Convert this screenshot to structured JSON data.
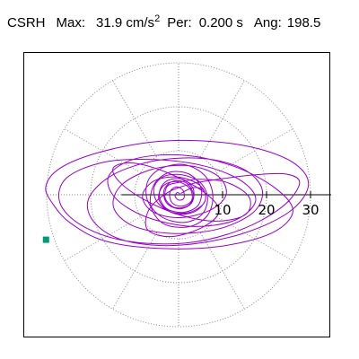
{
  "header": {
    "station": "CSRH",
    "max_label": "Max:",
    "max_value": "31.9 cm/s",
    "max_exp": "2",
    "per_label": "Per:",
    "per_value": "0.200 s",
    "ang_label": "Ang:",
    "ang_value": "198.5"
  },
  "chart_data": {
    "type": "polar-orbit",
    "r_ticks": [
      10,
      20,
      30
    ],
    "tick_labels": [
      "10",
      "20",
      "30"
    ],
    "r_max": 35,
    "angle_spokes_deg": [
      0,
      30,
      60,
      90,
      120,
      150,
      180,
      210,
      240,
      270,
      300,
      330
    ],
    "max_radius_value": 31.9,
    "max_angle_deg": 198.5,
    "period_s": 0.2,
    "units": "cm/s2",
    "orbit_color": "#9900cc",
    "marker_color": "#009977",
    "grid_color": "#888888",
    "orbit": [
      [
        0.5,
        0.3
      ],
      [
        3.2,
        1.6
      ],
      [
        5.6,
        1.1
      ],
      [
        6.0,
        -1.4
      ],
      [
        3.5,
        -3.9
      ],
      [
        -0.8,
        -4.3
      ],
      [
        -4.7,
        -1.9
      ],
      [
        -5.6,
        1.6
      ],
      [
        -3.3,
        4.2
      ],
      [
        0.9,
        4.5
      ],
      [
        4.9,
        2.8
      ],
      [
        6.6,
        -0.8
      ],
      [
        5.2,
        -4.6
      ],
      [
        1.1,
        -6.3
      ],
      [
        -3.9,
        -5.0
      ],
      [
        -7.1,
        -1.2
      ],
      [
        -6.9,
        3.3
      ],
      [
        -3.5,
        6.2
      ],
      [
        1.6,
        6.8
      ],
      [
        6.1,
        4.2
      ],
      [
        7.8,
        -0.4
      ],
      [
        6.4,
        -4.9
      ],
      [
        2.2,
        -7.3
      ],
      [
        -3.4,
        -6.6
      ],
      [
        -6.3,
        -2.6
      ],
      [
        -5.6,
        2.3
      ],
      [
        -2.1,
        5.1
      ],
      [
        2.4,
        4.7
      ],
      [
        5.1,
        1.6
      ],
      [
        4.5,
        -2.3
      ],
      [
        1.2,
        -4.0
      ],
      [
        -2.8,
        -3.1
      ],
      [
        -4.4,
        0.1
      ],
      [
        -2.9,
        3.0
      ],
      [
        0.7,
        3.6
      ],
      [
        3.3,
        1.4
      ],
      [
        3.0,
        -1.8
      ],
      [
        0.2,
        -3.2
      ],
      [
        -2.7,
        -1.9
      ],
      [
        -3.3,
        1.1
      ],
      [
        -1.2,
        3.1
      ],
      [
        1.9,
        2.6
      ],
      [
        3.4,
        -0.2
      ],
      [
        2.1,
        -2.5
      ],
      [
        -0.9,
        -2.9
      ],
      [
        -3.0,
        -0.9
      ],
      [
        -2.6,
        1.9
      ],
      [
        0.0,
        2.8
      ],
      [
        4.5,
        3.5
      ],
      [
        11.0,
        2.8
      ],
      [
        16.0,
        -0.5
      ],
      [
        15.2,
        -4.5
      ],
      [
        8.5,
        -6.0
      ],
      [
        0.0,
        -4.5
      ],
      [
        -8.0,
        -1.0
      ],
      [
        -13.5,
        3.0
      ],
      [
        -14.8,
        6.2
      ],
      [
        -10.2,
        7.2
      ],
      [
        -2.5,
        5.0
      ],
      [
        5.5,
        0.8
      ],
      [
        9.2,
        -3.5
      ],
      [
        5.8,
        -7.2
      ],
      [
        -1.5,
        -9.5
      ],
      [
        -7.0,
        -8.0
      ],
      [
        -6.8,
        -3.5
      ],
      [
        -2.5,
        0.5
      ],
      [
        3.0,
        2.5
      ],
      [
        9.0,
        3.5
      ],
      [
        17.0,
        4.5
      ],
      [
        24.5,
        4.7
      ],
      [
        27.5,
        2.6
      ],
      [
        23.5,
        -2.8
      ],
      [
        14.0,
        -8.0
      ],
      [
        1.5,
        -11.0
      ],
      [
        -12.0,
        -10.5
      ],
      [
        -22.0,
        -7.0
      ],
      [
        -27.0,
        -1.8
      ],
      [
        -25.5,
        3.8
      ],
      [
        -17.0,
        7.4
      ],
      [
        -5.5,
        8.0
      ],
      [
        6.0,
        6.5
      ],
      [
        14.5,
        3.0
      ],
      [
        17.5,
        -1.4
      ],
      [
        12.8,
        -5.8
      ],
      [
        3.0,
        -7.2
      ],
      [
        -7.5,
        -5.0
      ],
      [
        -14.5,
        -0.6
      ],
      [
        -15.8,
        4.4
      ],
      [
        -9.8,
        8.2
      ],
      [
        1.0,
        9.0
      ],
      [
        12.5,
        6.5
      ],
      [
        22.0,
        1.5
      ],
      [
        26.0,
        -3.8
      ],
      [
        21.0,
        -8.8
      ],
      [
        9.0,
        -11.8
      ],
      [
        -4.5,
        -12.2
      ],
      [
        -16.8,
        -10.5
      ],
      [
        -24.5,
        -6.5
      ],
      [
        -28.5,
        -2.2
      ],
      [
        -30.2,
        1.8
      ],
      [
        -27.0,
        6.0
      ],
      [
        -18.5,
        9.5
      ],
      [
        -6.0,
        12.0
      ],
      [
        6.5,
        12.2
      ],
      [
        18.0,
        10.5
      ],
      [
        26.5,
        7.0
      ],
      [
        29.5,
        2.0
      ],
      [
        25.0,
        -4.0
      ],
      [
        14.0,
        -9.0
      ],
      [
        0.0,
        -11.5
      ],
      [
        -12.0,
        -10.5
      ],
      [
        -19.0,
        -6.5
      ],
      [
        -20.5,
        -1.0
      ],
      [
        -15.0,
        4.5
      ],
      [
        -5.0,
        7.8
      ],
      [
        6.0,
        8.2
      ],
      [
        14.8,
        5.8
      ],
      [
        19.0,
        1.2
      ],
      [
        17.0,
        -4.0
      ],
      [
        9.0,
        -7.8
      ],
      [
        -1.5,
        -8.8
      ],
      [
        -10.5,
        -7.0
      ],
      [
        -14.8,
        -2.8
      ],
      [
        -13.0,
        2.2
      ],
      [
        -6.0,
        5.8
      ],
      [
        2.5,
        6.6
      ],
      [
        9.0,
        4.2
      ],
      [
        10.8,
        0.0
      ],
      [
        7.0,
        -3.6
      ],
      [
        0.0,
        -5.2
      ],
      [
        -6.0,
        -3.8
      ],
      [
        -8.2,
        -0.2
      ],
      [
        -5.5,
        3.2
      ],
      [
        0.0,
        4.0
      ],
      [
        5.0,
        2.0
      ],
      [
        6.0,
        -1.5
      ],
      [
        2.5,
        -4.0
      ],
      [
        -2.0,
        -3.8
      ],
      [
        -4.5,
        -1.0
      ],
      [
        -3.5,
        2.0
      ],
      [
        -0.5,
        3.0
      ],
      [
        2.5,
        1.5
      ],
      [
        3.0,
        -1.2
      ],
      [
        0.8,
        -2.6
      ],
      [
        -1.5,
        -1.8
      ],
      [
        -2.0,
        0.5
      ],
      [
        -0.6,
        1.8
      ],
      [
        1.0,
        1.0
      ],
      [
        1.2,
        -0.8
      ],
      [
        0.0,
        -1.2
      ],
      [
        -0.8,
        -0.3
      ],
      [
        -0.3,
        0.5
      ],
      [
        0.3,
        0.2
      ]
    ]
  }
}
